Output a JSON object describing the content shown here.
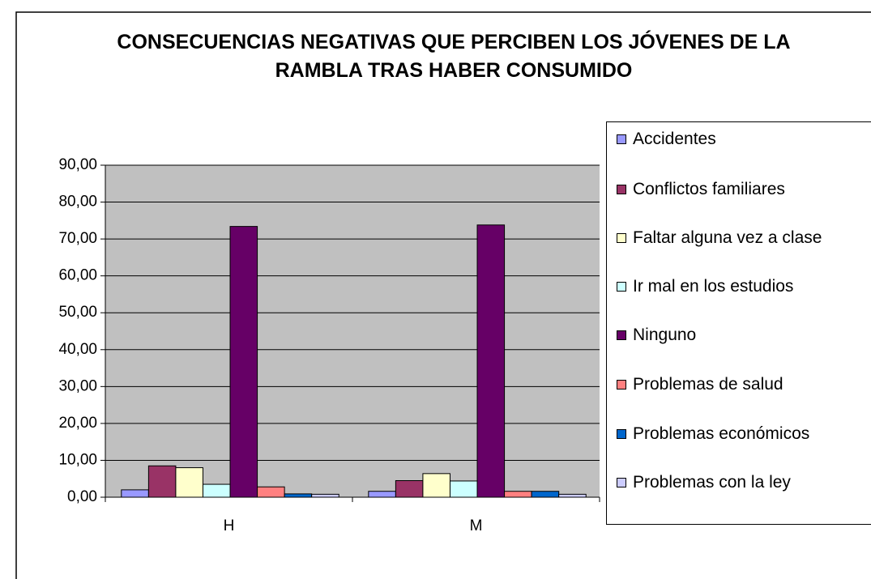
{
  "chart_data": {
    "type": "bar",
    "title": "CONSECUENCIAS NEGATIVAS QUE PERCIBEN LOS JÓVENES DE LA RAMBLA TRAS HABER CONSUMIDO",
    "categories": [
      "H",
      "M"
    ],
    "series": [
      {
        "name": "Accidentes",
        "color": "#9999ff",
        "values": [
          2.0,
          1.6
        ]
      },
      {
        "name": "Conflictos familiares",
        "color": "#993366",
        "values": [
          8.5,
          4.5
        ]
      },
      {
        "name": "Faltar alguna vez a clase",
        "color": "#ffffcc",
        "values": [
          8.0,
          6.4
        ]
      },
      {
        "name": "Ir mal en los estudios",
        "color": "#ccffff",
        "values": [
          3.5,
          4.4
        ]
      },
      {
        "name": "Ninguno",
        "color": "#660066",
        "values": [
          73.4,
          73.8
        ]
      },
      {
        "name": "Problemas de salud",
        "color": "#ff8080",
        "values": [
          2.8,
          1.6
        ]
      },
      {
        "name": "Problemas económicos",
        "color": "#0066cc",
        "values": [
          0.9,
          1.6
        ]
      },
      {
        "name": "Problemas con la ley",
        "color": "#ccccff",
        "values": [
          0.8,
          0.8
        ]
      }
    ],
    "ylim": [
      0,
      90
    ],
    "yticks": [
      {
        "value": 0,
        "label": "0,00"
      },
      {
        "value": 10,
        "label": "10,00"
      },
      {
        "value": 20,
        "label": "20,00"
      },
      {
        "value": 30,
        "label": "30,00"
      },
      {
        "value": 40,
        "label": "40,00"
      },
      {
        "value": 50,
        "label": "50,00"
      },
      {
        "value": 60,
        "label": "60,00"
      },
      {
        "value": 70,
        "label": "70,00"
      },
      {
        "value": 80,
        "label": "80,00"
      },
      {
        "value": 90,
        "label": "90,00"
      }
    ],
    "grid": true,
    "legend": "right"
  }
}
